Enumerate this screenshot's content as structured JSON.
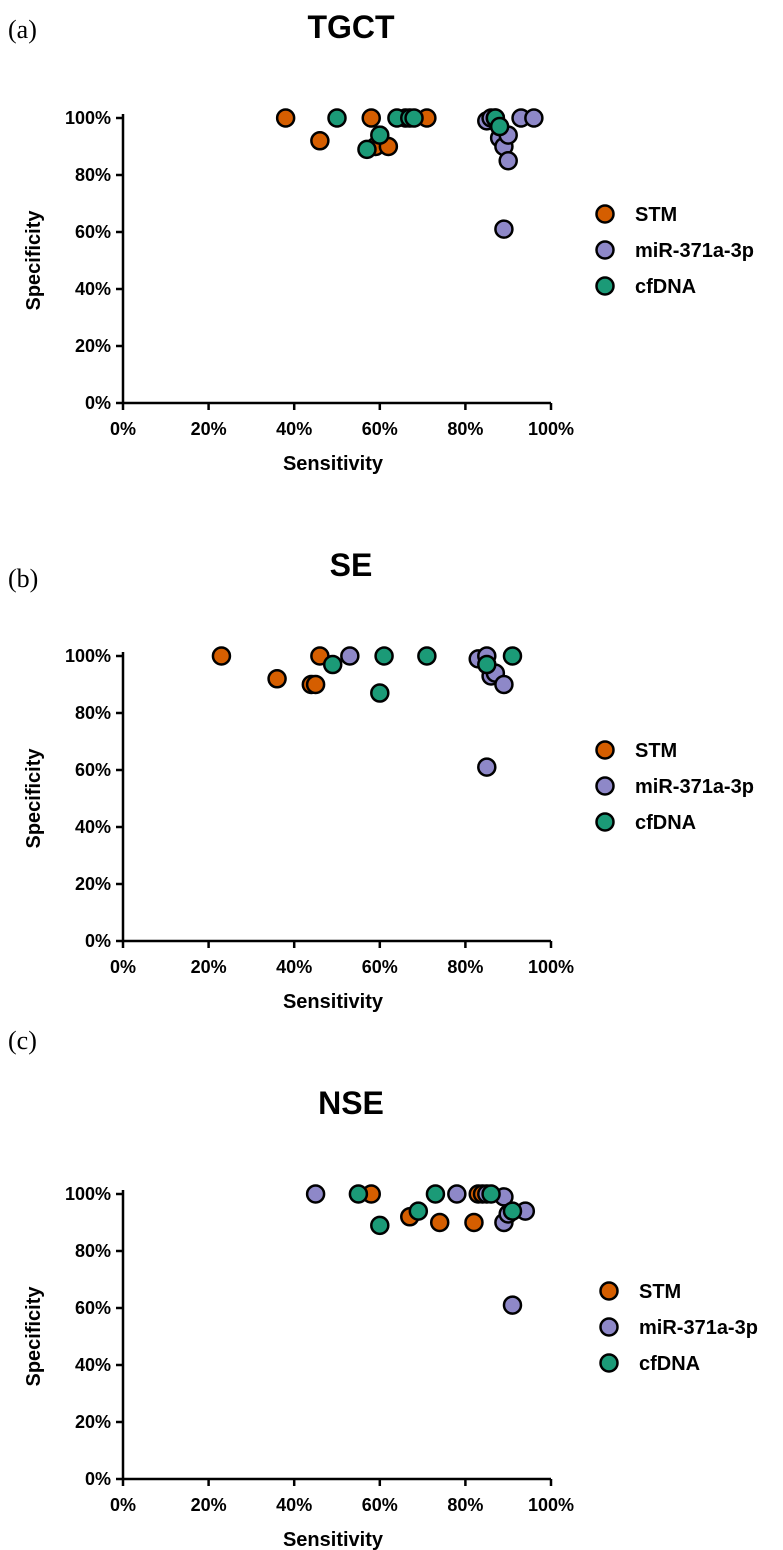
{
  "colors": {
    "STM": "#d55e00",
    "miR-371a-3p": "#8e88c8",
    "cfDNA": "#1b9a77"
  },
  "chart_data": [
    {
      "type": "scatter",
      "panel": "(a)",
      "title": "TGCT",
      "xlabel": "Sensitivity",
      "ylabel": "Specificity",
      "xlim": [
        0,
        100
      ],
      "ylim": [
        0,
        100
      ],
      "xticks": [
        "0%",
        "20%",
        "40%",
        "60%",
        "80%",
        "100%"
      ],
      "yticks": [
        "0%",
        "20%",
        "40%",
        "60%",
        "80%",
        "100%"
      ],
      "grid": false,
      "legend": "right",
      "series": [
        {
          "name": "STM",
          "points": [
            [
              38,
              100
            ],
            [
              46,
              92
            ],
            [
              58,
              100
            ],
            [
              59,
              90
            ],
            [
              62,
              90
            ],
            [
              66,
              100
            ],
            [
              71,
              100
            ]
          ]
        },
        {
          "name": "miR-371a-3p",
          "points": [
            [
              85,
              99
            ],
            [
              86,
              100
            ],
            [
              87,
              100
            ],
            [
              88,
              93
            ],
            [
              89,
              90
            ],
            [
              90,
              94
            ],
            [
              90,
              85
            ],
            [
              93,
              100
            ],
            [
              96,
              100
            ],
            [
              89,
              61
            ]
          ]
        },
        {
          "name": "cfDNA",
          "points": [
            [
              50,
              100
            ],
            [
              57,
              89
            ],
            [
              60,
              94
            ],
            [
              64,
              100
            ],
            [
              67,
              100
            ],
            [
              68,
              100
            ],
            [
              87,
              100
            ],
            [
              88,
              97
            ]
          ]
        }
      ]
    },
    {
      "type": "scatter",
      "panel": "(b)",
      "title": "SE",
      "xlabel": "Sensitivity",
      "ylabel": "Specificity",
      "xlim": [
        0,
        100
      ],
      "ylim": [
        0,
        100
      ],
      "xticks": [
        "0%",
        "20%",
        "40%",
        "60%",
        "80%",
        "100%"
      ],
      "yticks": [
        "0%",
        "20%",
        "40%",
        "60%",
        "80%",
        "100%"
      ],
      "grid": false,
      "legend": "right",
      "series": [
        {
          "name": "STM",
          "points": [
            [
              23,
              100
            ],
            [
              36,
              92
            ],
            [
              44,
              90
            ],
            [
              45,
              90
            ],
            [
              46,
              100
            ]
          ]
        },
        {
          "name": "miR-371a-3p",
          "points": [
            [
              53,
              100
            ],
            [
              83,
              99
            ],
            [
              85,
              100
            ],
            [
              86,
              93
            ],
            [
              87,
              94
            ],
            [
              89,
              90
            ],
            [
              85,
              61
            ]
          ]
        },
        {
          "name": "cfDNA",
          "points": [
            [
              49,
              97
            ],
            [
              60,
              87
            ],
            [
              61,
              100
            ],
            [
              71,
              100
            ],
            [
              85,
              97
            ],
            [
              91,
              100
            ]
          ]
        }
      ]
    },
    {
      "type": "scatter",
      "panel": "(c)",
      "title": "NSE",
      "xlabel": "Sensitivity",
      "ylabel": "Specificity",
      "xlim": [
        0,
        100
      ],
      "ylim": [
        0,
        100
      ],
      "xticks": [
        "0%",
        "20%",
        "40%",
        "60%",
        "80%",
        "100%"
      ],
      "yticks": [
        "0%",
        "20%",
        "40%",
        "60%",
        "80%",
        "100%"
      ],
      "grid": false,
      "legend": "right",
      "series": [
        {
          "name": "STM",
          "points": [
            [
              58,
              100
            ],
            [
              67,
              92
            ],
            [
              74,
              90
            ],
            [
              82,
              90
            ],
            [
              83,
              100
            ],
            [
              84,
              100
            ]
          ]
        },
        {
          "name": "miR-371a-3p",
          "points": [
            [
              45,
              100
            ],
            [
              78,
              100
            ],
            [
              85,
              100
            ],
            [
              89,
              99
            ],
            [
              89,
              90
            ],
            [
              90,
              93
            ],
            [
              94,
              94
            ],
            [
              91,
              61
            ]
          ]
        },
        {
          "name": "cfDNA",
          "points": [
            [
              55,
              100
            ],
            [
              60,
              89
            ],
            [
              69,
              94
            ],
            [
              73,
              100
            ],
            [
              86,
              100
            ],
            [
              91,
              94
            ]
          ]
        }
      ]
    }
  ]
}
